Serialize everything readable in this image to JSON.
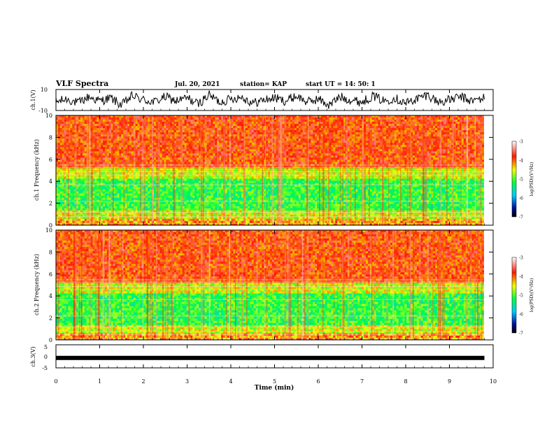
{
  "header": {
    "title": "VLF Spectra",
    "date": "Jul. 20, 2021",
    "station": "station= KAP",
    "start": "start UT = 14: 50: 1"
  },
  "chart_data": [
    {
      "panel": "ch1-waveform",
      "type": "line",
      "ylabel": "ch.1(V)",
      "ylim": [
        -10,
        10
      ],
      "yticks": [
        "10",
        "-10"
      ],
      "x": [
        0,
        0.25,
        0.5,
        0.75,
        1.0,
        1.25,
        1.5,
        1.75,
        2.0,
        2.25,
        2.5,
        2.75,
        3.0,
        3.25,
        3.5,
        3.75,
        4.0,
        4.25,
        4.5,
        4.75,
        5.0,
        5.25,
        5.5,
        5.75,
        6.0,
        6.25,
        6.5,
        6.75,
        7.0,
        7.25,
        7.5,
        7.75,
        8.0,
        8.25,
        8.5,
        8.75,
        9.0,
        9.25,
        9.5,
        9.8
      ],
      "values": [
        -2,
        1,
        -3,
        3,
        -1,
        2,
        -5,
        4,
        0,
        -2,
        3,
        -1,
        2,
        -4,
        5,
        -2,
        1,
        3,
        -3,
        0,
        2,
        -1,
        4,
        -2,
        1,
        -5,
        3,
        0,
        -2,
        4,
        -1,
        2,
        -3,
        1,
        5,
        -2,
        0,
        3,
        -1,
        2
      ]
    },
    {
      "panel": "ch1-spectrogram",
      "type": "heatmap",
      "ylabel": "ch.1 Frequency (kHz)",
      "ylim": [
        0,
        10
      ],
      "yticks": [
        "0",
        "2",
        "4",
        "6",
        "8",
        "10"
      ],
      "colorbar": {
        "label": "log(PSD)(V²/Hz)",
        "range": [
          -7,
          -3
        ],
        "ticks": [
          "-3",
          "-4",
          "-5",
          "-6",
          "-7"
        ]
      }
    },
    {
      "panel": "ch2-spectrogram",
      "type": "heatmap",
      "ylabel": "ch.2 Frequency (kHz)",
      "ylim": [
        0,
        10
      ],
      "yticks": [
        "0",
        "2",
        "4",
        "6",
        "8",
        "10"
      ],
      "colorbar": {
        "label": "log(PSD)(V²/Hz)",
        "range": [
          -7,
          -3
        ],
        "ticks": [
          "-3",
          "-4",
          "-5",
          "-6",
          "-7"
        ]
      }
    },
    {
      "panel": "ch3-waveform",
      "type": "line",
      "ylabel": "ch.3(V)",
      "ylim": [
        -5,
        5
      ],
      "yticks": [
        "5",
        "0",
        "-5"
      ],
      "x": [
        0,
        9.8
      ],
      "values": [
        -0.7,
        -0.7
      ]
    }
  ],
  "xaxis": {
    "label": "Time (min)",
    "range": [
      0,
      10
    ],
    "ticks": [
      "0",
      "1",
      "2",
      "3",
      "4",
      "5",
      "6",
      "7",
      "8",
      "9",
      "10"
    ]
  }
}
